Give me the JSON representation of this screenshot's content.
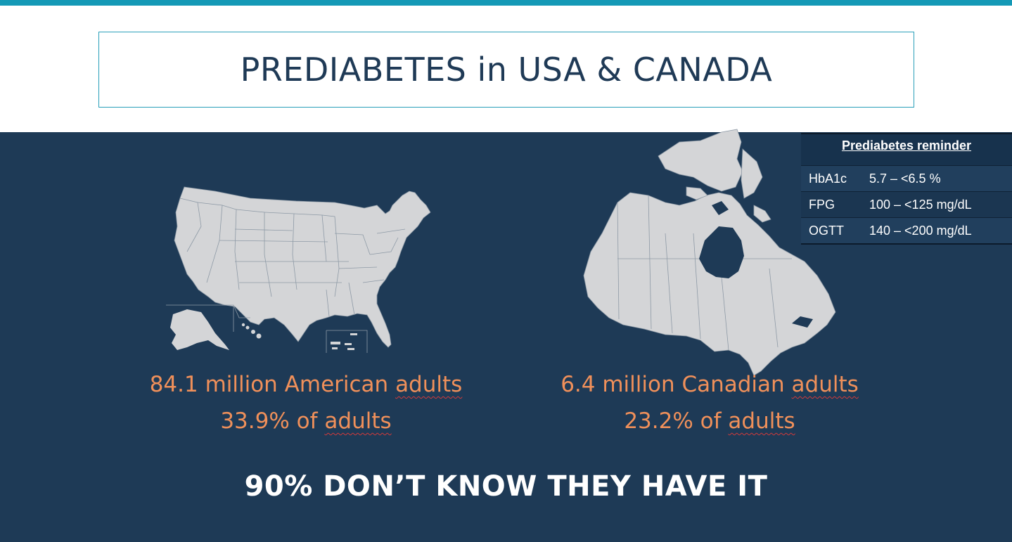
{
  "slide": {
    "title": "PREDIABETES in USA & CANADA",
    "headline": "90% DON’T KNOW THEY HAVE IT"
  },
  "usa": {
    "count_text": "84.1 million American ",
    "adults_word": "adults",
    "pct_text": "33.9% of ",
    "adults_word_2": "adults"
  },
  "canada": {
    "count_text": "6.4 million Canadian ",
    "adults_word": "adults",
    "pct_text": "23.2% of ",
    "adults_word_2": "adults"
  },
  "reminder": {
    "heading": "Prediabetes reminder",
    "rows": [
      {
        "label": "HbA1c",
        "value": "5.7 – <6.5 %"
      },
      {
        "label": "FPG",
        "value": "100 – <125 mg/dL"
      },
      {
        "label": "OGTT",
        "value": "140 – <200 mg/dL"
      }
    ]
  },
  "colors": {
    "accent_bar": "#1499b6",
    "panel": "#1e3a56",
    "stat_text": "#f0905a",
    "map_fill": "#d4d5d7"
  },
  "icons": [
    "usa-map-icon",
    "canada-map-icon"
  ]
}
